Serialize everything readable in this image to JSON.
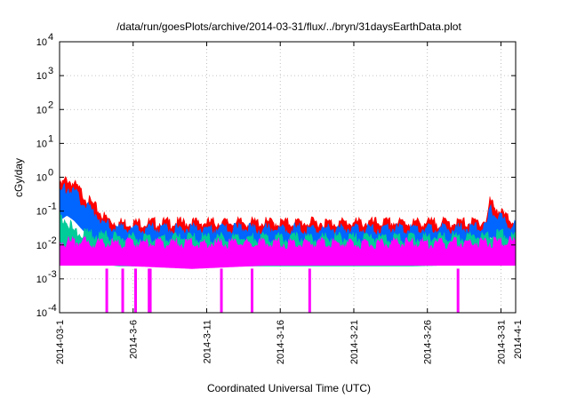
{
  "chart_data": {
    "type": "area",
    "title": "/data/run/goesPlots/archive/2014-03-31/flux/../bryn/31daysEarthData.plot",
    "xlabel": "Coordinated Universal Time (UTC)",
    "ylabel": "cGy/day",
    "yscale": "log",
    "ylim": [
      0.0001,
      10000
    ],
    "xlim": [
      "2014-03-01",
      "2014-04-01"
    ],
    "grid": true,
    "x_ticks": [
      "2014-03-1",
      "2014-3-6",
      "2014-3-11",
      "2014-3-16",
      "2014-3-21",
      "2014-3-26",
      "2014-3-31",
      "2014-4-1"
    ],
    "y_ticks": [
      {
        "mant": "10",
        "exp": "-4",
        "value": 0.0001
      },
      {
        "mant": "10",
        "exp": "-3",
        "value": 0.001
      },
      {
        "mant": "10",
        "exp": "-2",
        "value": 0.01
      },
      {
        "mant": "10",
        "exp": "-1",
        "value": 0.1
      },
      {
        "mant": "10",
        "exp": "0",
        "value": 1
      },
      {
        "mant": "10",
        "exp": "1",
        "value": 10
      },
      {
        "mant": "10",
        "exp": "2",
        "value": 100
      },
      {
        "mant": "10",
        "exp": "3",
        "value": 1000
      },
      {
        "mant": "10",
        "exp": "4",
        "value": 10000
      }
    ],
    "series": [
      {
        "color": "#ff0000",
        "x": [
          "2014-03-01",
          "2014-03-01T12:00",
          "2014-03-02",
          "2014-03-02T12:00",
          "2014-03-03",
          "2014-03-03T12:00",
          "2014-03-04",
          "2014-03-04T12:00",
          "2014-03-05",
          "2014-03-07",
          "2014-03-10",
          "2014-03-13",
          "2014-03-16",
          "2014-03-19",
          "2014-03-22",
          "2014-03-25",
          "2014-03-28",
          "2014-03-29",
          "2014-03-30",
          "2014-03-30T06:00",
          "2014-03-30T12:00",
          "2014-03-31",
          "2014-03-31T12:00",
          "2014-04-01"
        ],
        "values": [
          0.5,
          0.9,
          0.6,
          0.35,
          0.2,
          0.12,
          0.07,
          0.05,
          0.045,
          0.045,
          0.045,
          0.045,
          0.045,
          0.045,
          0.045,
          0.045,
          0.045,
          0.045,
          0.05,
          0.2,
          0.15,
          0.09,
          0.06,
          0.05
        ]
      },
      {
        "color": "#0066ff",
        "x": [
          "2014-03-01",
          "2014-03-01T12:00",
          "2014-03-02",
          "2014-03-02T12:00",
          "2014-03-03",
          "2014-03-03T12:00",
          "2014-03-04",
          "2014-03-04T12:00",
          "2014-03-05",
          "2014-03-07",
          "2014-03-10",
          "2014-03-13",
          "2014-03-16",
          "2014-03-19",
          "2014-03-22",
          "2014-03-25",
          "2014-03-28",
          "2014-03-29",
          "2014-03-30",
          "2014-03-30T06:00",
          "2014-03-30T12:00",
          "2014-03-31",
          "2014-03-31T12:00",
          "2014-04-01"
        ],
        "values": [
          0.35,
          0.5,
          0.35,
          0.2,
          0.12,
          0.08,
          0.045,
          0.035,
          0.03,
          0.03,
          0.03,
          0.03,
          0.03,
          0.03,
          0.03,
          0.03,
          0.03,
          0.03,
          0.035,
          0.12,
          0.09,
          0.06,
          0.04,
          0.035
        ]
      },
      {
        "color": "#00cc99",
        "x": [
          "2014-03-01",
          "2014-03-01T12:00",
          "2014-03-02",
          "2014-03-03",
          "2014-03-04",
          "2014-03-05",
          "2014-03-10",
          "2014-03-15",
          "2014-03-20",
          "2014-03-25",
          "2014-03-30",
          "2014-03-31",
          "2014-04-01"
        ],
        "values": [
          0.08,
          0.05,
          0.025,
          0.02,
          0.018,
          0.016,
          0.016,
          0.016,
          0.016,
          0.016,
          0.018,
          0.02,
          0.018
        ]
      },
      {
        "color": "#ff00ff",
        "x": [
          "2014-03-01",
          "2014-03-05",
          "2014-03-10",
          "2014-03-15",
          "2014-03-20",
          "2014-03-25",
          "2014-03-30",
          "2014-04-01"
        ],
        "values": [
          0.012,
          0.011,
          0.011,
          0.011,
          0.011,
          0.011,
          0.012,
          0.012
        ]
      }
    ],
    "floor_values": [
      0.0025,
      0.0025,
      0.002,
      0.0025,
      0.0025,
      0.0025,
      0.0025,
      0.0025
    ],
    "dropouts": [
      "2014-03-04T05:00",
      "2014-03-05T07:00",
      "2014-03-06T04:00",
      "2014-03-07T02:00",
      "2014-03-07T04:00",
      "2014-03-12",
      "2014-03-14T02:00",
      "2014-03-18",
      "2014-03-28T02:00"
    ]
  }
}
